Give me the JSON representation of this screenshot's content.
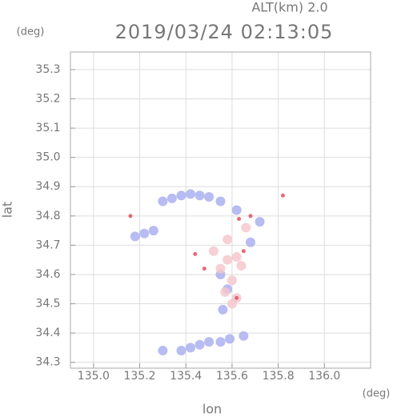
{
  "chart_data": {
    "type": "scatter",
    "title": "2019/03/24 02:13:05",
    "subtitle": "ALT(km) 2.0",
    "x_label": "lon",
    "y_label": "lat",
    "x_unit": "(deg)",
    "y_unit": "(deg)",
    "xlim": [
      134.9,
      136.2
    ],
    "ylim": [
      34.28,
      35.36
    ],
    "xticks": [
      {
        "value": 135.0,
        "label": "135.0"
      },
      135.2,
      135.4,
      135.6,
      135.8,
      {
        "value": 136.0,
        "label": "136.0"
      }
    ],
    "yticks": [
      34.3,
      34.4,
      34.5,
      34.6,
      34.7,
      34.8,
      34.9,
      {
        "value": 35.0,
        "label": "35.0"
      },
      35.1,
      35.2,
      35.3
    ],
    "grid": true,
    "series": [
      {
        "color": "#aab0f0",
        "x": [
          135.38,
          135.42,
          135.46,
          135.34,
          135.3,
          135.5,
          135.55,
          135.22,
          135.26,
          135.18,
          135.3,
          135.38,
          135.42,
          135.46,
          135.5,
          135.55,
          135.59,
          135.65,
          135.58,
          135.56,
          135.62,
          135.72,
          135.68,
          135.55
        ],
        "values": [
          34.87,
          34.875,
          34.87,
          34.86,
          34.85,
          34.865,
          34.85,
          34.74,
          34.75,
          34.73,
          34.34,
          34.34,
          34.35,
          34.36,
          34.37,
          34.37,
          34.38,
          34.39,
          34.55,
          34.48,
          34.82,
          34.78,
          34.71,
          34.6
        ]
      },
      {
        "color": "#f4c8cc",
        "x": [
          135.58,
          135.62,
          135.55,
          135.6,
          135.64,
          135.57,
          135.62,
          135.52,
          135.58,
          135.66,
          135.6
        ],
        "values": [
          34.65,
          34.66,
          34.62,
          34.58,
          34.63,
          34.54,
          34.52,
          34.68,
          34.72,
          34.76,
          34.5
        ]
      },
      {
        "color": "#e05060",
        "x": [
          135.16,
          135.63,
          135.68,
          135.44,
          135.62,
          135.48,
          135.82,
          135.65
        ],
        "values": [
          34.8,
          34.79,
          34.8,
          34.67,
          34.52,
          34.62,
          34.87,
          34.68
        ]
      }
    ]
  }
}
